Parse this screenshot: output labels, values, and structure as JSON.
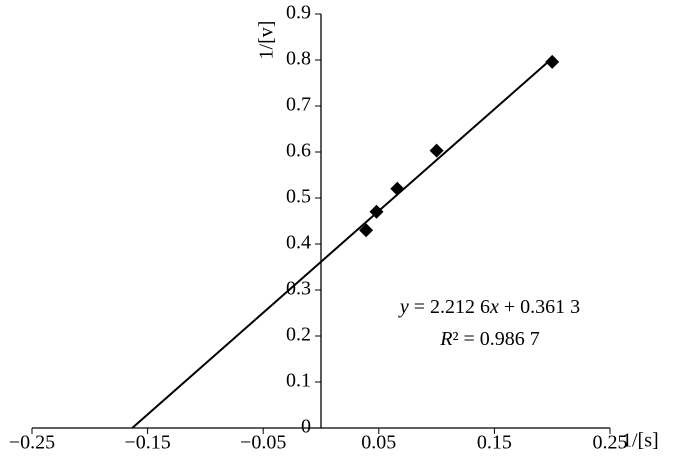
{
  "chart_data": {
    "type": "scatter",
    "x_label": "1/[s]",
    "y_label": "1/[v]",
    "series": [
      {
        "color": "#000000",
        "x": [
          0.039,
          0.048,
          0.066,
          0.1,
          0.2
        ],
        "values": [
          0.43,
          0.47,
          0.52,
          0.603,
          0.796
        ]
      }
    ],
    "trendline": {
      "slope": 2.2126,
      "intercept": 0.3613,
      "equation": [
        "y",
        " = 2.212 6",
        "x",
        " + 0.361 3"
      ],
      "r2_label": [
        "R",
        "² = 0.986 7"
      ]
    },
    "xlim": [
      -0.25,
      0.25
    ],
    "xticks": [
      {
        "value": -0.25,
        "label": "−0.25"
      },
      {
        "value": -0.15,
        "label": "−0.15"
      },
      {
        "value": -0.05,
        "label": "−0.05"
      },
      0.05,
      0.15,
      0.25
    ],
    "ylim": [
      0,
      0.9
    ],
    "yticks": [
      0,
      0.1,
      0.2,
      0.3,
      0.4,
      0.5,
      0.6,
      0.7,
      0.8,
      0.9
    ],
    "grid": false
  }
}
